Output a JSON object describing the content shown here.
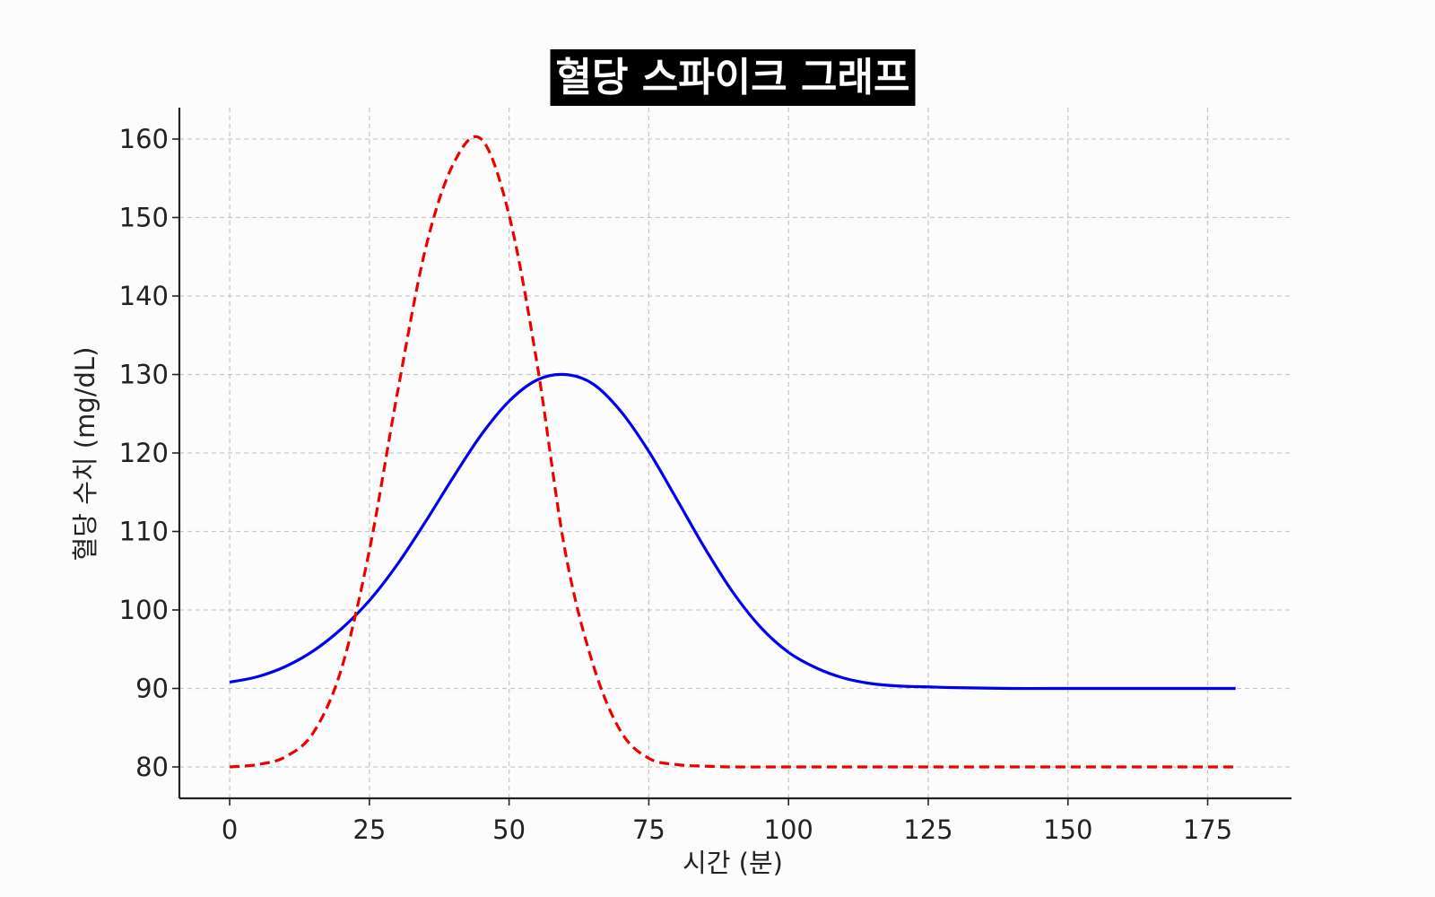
{
  "colors": {
    "background": "#fcfcfc",
    "title_background": "#000000",
    "title_text": "#ffffff",
    "normal_line": "#0000ee",
    "spike_line": "#ee0000",
    "grid": "#c8c8c8"
  },
  "chart_data": {
    "type": "line",
    "title": "혈당 스파이크 그래프",
    "xlabel": "시간 (분)",
    "ylabel": "혈당 수치 (mg/dL)",
    "xlim": [
      -9,
      190
    ],
    "ylim": [
      76,
      164
    ],
    "xticks": [
      0,
      25,
      50,
      75,
      100,
      125,
      150,
      175
    ],
    "yticks": [
      80,
      90,
      100,
      110,
      120,
      130,
      140,
      150,
      160
    ],
    "grid": true,
    "legend": "none",
    "series": [
      {
        "style": "solid",
        "color": "#0000ee",
        "x": [
          0,
          5,
          10,
          15,
          20,
          25,
          30,
          35,
          40,
          45,
          50,
          55,
          60,
          65,
          70,
          75,
          80,
          85,
          90,
          95,
          100,
          105,
          110,
          115,
          120,
          125,
          130,
          140,
          150,
          160,
          170,
          180
        ],
        "y": [
          90.8,
          91.5,
          92.8,
          94.8,
          97.6,
          101.2,
          105.8,
          111.2,
          116.9,
          122.3,
          126.6,
          129.3,
          130.0,
          128.8,
          125.3,
          120.2,
          114.1,
          107.9,
          102.3,
          97.8,
          94.6,
          92.6,
          91.3,
          90.6,
          90.3,
          90.2,
          90.1,
          90.0,
          90.0,
          90.0,
          90.0,
          90.0
        ]
      },
      {
        "style": "dashed",
        "color": "#ee0000",
        "x": [
          0,
          5,
          10,
          15,
          20,
          25,
          30,
          35,
          40,
          45,
          50,
          55,
          60,
          65,
          70,
          75,
          80,
          85,
          90,
          100,
          110,
          120,
          130,
          140,
          150,
          160,
          170,
          180
        ],
        "y": [
          80.0,
          80.3,
          81.3,
          84.4,
          92.5,
          107.6,
          127.6,
          145.9,
          156.8,
          160.0,
          150.3,
          131.4,
          107.6,
          93.1,
          84.5,
          81.1,
          80.3,
          80.1,
          80.0,
          80.0,
          80.0,
          80.0,
          80.0,
          80.0,
          80.0,
          80.0,
          80.0,
          80.0
        ]
      }
    ]
  }
}
